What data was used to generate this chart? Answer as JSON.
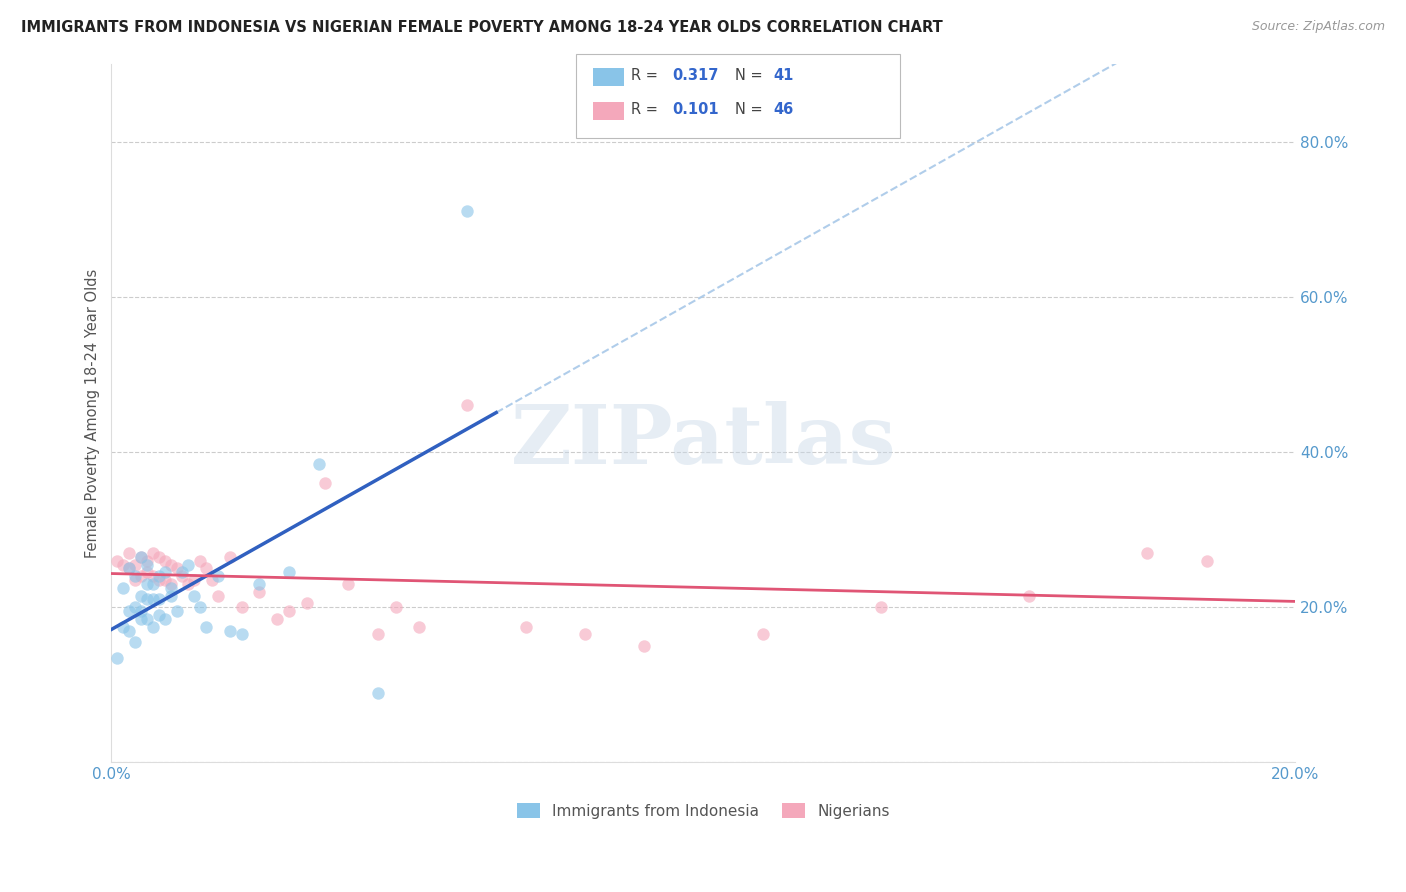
{
  "title": "IMMIGRANTS FROM INDONESIA VS NIGERIAN FEMALE POVERTY AMONG 18-24 YEAR OLDS CORRELATION CHART",
  "source": "Source: ZipAtlas.com",
  "ylabel": "Female Poverty Among 18-24 Year Olds",
  "xlim": [
    0.0,
    0.2
  ],
  "ylim": [
    0.0,
    0.9
  ],
  "ytick_vals": [
    0.0,
    0.2,
    0.4,
    0.6,
    0.8
  ],
  "xtick_vals": [
    0.0,
    0.02,
    0.04,
    0.06,
    0.08,
    0.1,
    0.12,
    0.14,
    0.16,
    0.18,
    0.2
  ],
  "grid_color": "#cccccc",
  "color_indonesia": "#89c4e8",
  "color_nigeria": "#f4a8bb",
  "color_indonesia_line": "#3060c0",
  "color_indonesia_dash": "#a8c8e8",
  "color_nigeria_line": "#e05575",
  "scatter_alpha": 0.6,
  "scatter_size": 80,
  "legend_r1": "R = 0.317",
  "legend_n1": "N = 41",
  "legend_r2": "R = 0.101",
  "legend_n2": "N = 46",
  "indonesia_x": [
    0.001,
    0.002,
    0.002,
    0.003,
    0.003,
    0.003,
    0.004,
    0.004,
    0.004,
    0.005,
    0.005,
    0.005,
    0.005,
    0.006,
    0.006,
    0.006,
    0.006,
    0.007,
    0.007,
    0.007,
    0.008,
    0.008,
    0.008,
    0.009,
    0.009,
    0.01,
    0.01,
    0.011,
    0.012,
    0.013,
    0.014,
    0.015,
    0.016,
    0.018,
    0.02,
    0.022,
    0.025,
    0.03,
    0.035,
    0.045,
    0.06
  ],
  "indonesia_y": [
    0.135,
    0.225,
    0.175,
    0.25,
    0.195,
    0.17,
    0.24,
    0.2,
    0.155,
    0.265,
    0.215,
    0.195,
    0.185,
    0.255,
    0.23,
    0.21,
    0.185,
    0.23,
    0.21,
    0.175,
    0.24,
    0.21,
    0.19,
    0.245,
    0.185,
    0.225,
    0.215,
    0.195,
    0.245,
    0.255,
    0.215,
    0.2,
    0.175,
    0.24,
    0.17,
    0.165,
    0.23,
    0.245,
    0.385,
    0.09,
    0.71
  ],
  "nigeria_x": [
    0.001,
    0.002,
    0.003,
    0.003,
    0.004,
    0.004,
    0.005,
    0.005,
    0.006,
    0.006,
    0.007,
    0.007,
    0.008,
    0.008,
    0.009,
    0.009,
    0.01,
    0.01,
    0.011,
    0.012,
    0.013,
    0.014,
    0.015,
    0.016,
    0.017,
    0.018,
    0.02,
    0.022,
    0.025,
    0.028,
    0.03,
    0.033,
    0.036,
    0.04,
    0.045,
    0.048,
    0.052,
    0.06,
    0.07,
    0.08,
    0.09,
    0.11,
    0.13,
    0.155,
    0.175,
    0.185
  ],
  "nigeria_y": [
    0.26,
    0.255,
    0.27,
    0.25,
    0.255,
    0.235,
    0.265,
    0.24,
    0.26,
    0.245,
    0.27,
    0.24,
    0.265,
    0.235,
    0.26,
    0.235,
    0.255,
    0.23,
    0.25,
    0.24,
    0.23,
    0.235,
    0.26,
    0.25,
    0.235,
    0.215,
    0.265,
    0.2,
    0.22,
    0.185,
    0.195,
    0.205,
    0.36,
    0.23,
    0.165,
    0.2,
    0.175,
    0.46,
    0.175,
    0.165,
    0.15,
    0.165,
    0.2,
    0.215,
    0.27,
    0.26
  ]
}
